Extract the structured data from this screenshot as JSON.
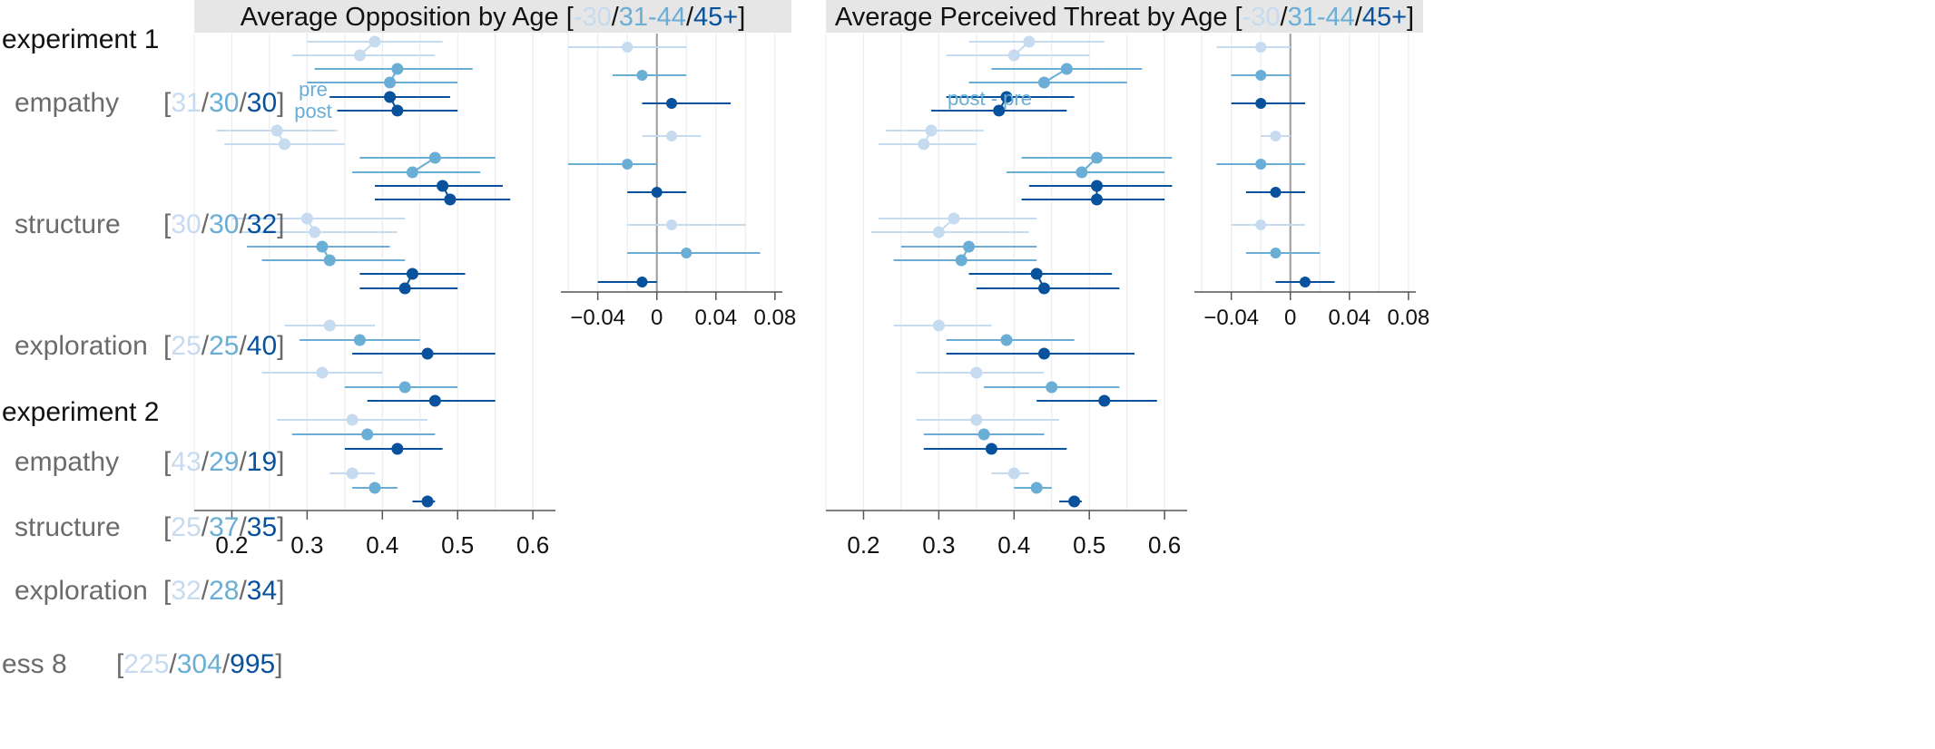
{
  "colors": {
    "young": "#c6dbef",
    "mid": "#6aaed6",
    "old": "#08519c",
    "grid": "#e8ecf0",
    "header_bg": "#e6e6e6",
    "axis": "#555555",
    "zero_line": "#9a9a9a",
    "label_gray": "#6b6b6b"
  },
  "header": {
    "left": {
      "title": "Average Opposition by Age [",
      "age_young": "-30",
      "sep1": "/",
      "age_mid": "31-44",
      "sep2": "/",
      "age_old": "45+",
      "close": "]"
    },
    "right": {
      "title": "Average Perceived Threat by Age [",
      "age_young": "-30",
      "sep1": "/",
      "age_mid": "31-44",
      "sep2": "/",
      "age_old": "45+",
      "close": "]"
    }
  },
  "labels": {
    "experiment1": "experiment 1",
    "experiment2": "experiment 2",
    "pre": "pre",
    "post": "post",
    "post_minus_pre": "post - pre",
    "open_bracket": "[",
    "close_bracket": "]",
    "slash": "/"
  },
  "chart_data": [
    {
      "type": "forest",
      "title": "Average Opposition by Age [-30/31-44/45+]",
      "x_ticks": [
        "0.2",
        "0.3",
        "0.4",
        "0.5",
        "0.6"
      ],
      "rows": [
        {
          "label": "empathy",
          "group": "experiment 1",
          "n": [
            "31",
            "30",
            "30"
          ],
          "pre": [
            {
              "m": 0.39,
              "lo": 0.3,
              "hi": 0.48
            },
            {
              "m": 0.42,
              "lo": 0.31,
              "hi": 0.52
            },
            {
              "m": 0.41,
              "lo": 0.33,
              "hi": 0.49
            }
          ],
          "post": [
            {
              "m": 0.37,
              "lo": 0.28,
              "hi": 0.47
            },
            {
              "m": 0.41,
              "lo": 0.3,
              "hi": 0.5
            },
            {
              "m": 0.42,
              "lo": 0.34,
              "hi": 0.5
            }
          ]
        },
        {
          "label": "structure",
          "group": "experiment 1",
          "n": [
            "30",
            "30",
            "32"
          ],
          "pre": [
            {
              "m": 0.26,
              "lo": 0.18,
              "hi": 0.34
            },
            {
              "m": 0.47,
              "lo": 0.37,
              "hi": 0.55
            },
            {
              "m": 0.48,
              "lo": 0.39,
              "hi": 0.56
            }
          ],
          "post": [
            {
              "m": 0.27,
              "lo": 0.19,
              "hi": 0.35
            },
            {
              "m": 0.44,
              "lo": 0.36,
              "hi": 0.53
            },
            {
              "m": 0.49,
              "lo": 0.39,
              "hi": 0.57
            }
          ]
        },
        {
          "label": "exploration",
          "group": "experiment 1",
          "n": [
            "25",
            "25",
            "40"
          ],
          "pre": [
            {
              "m": 0.3,
              "lo": 0.2,
              "hi": 0.43
            },
            {
              "m": 0.32,
              "lo": 0.22,
              "hi": 0.41
            },
            {
              "m": 0.44,
              "lo": 0.37,
              "hi": 0.51
            }
          ],
          "post": [
            {
              "m": 0.31,
              "lo": 0.21,
              "hi": 0.42
            },
            {
              "m": 0.33,
              "lo": 0.24,
              "hi": 0.43
            },
            {
              "m": 0.43,
              "lo": 0.37,
              "hi": 0.5
            }
          ]
        },
        {
          "label": "empathy",
          "group": "experiment 2",
          "n": [
            "43",
            "29",
            "19"
          ],
          "single": [
            {
              "m": 0.33,
              "lo": 0.27,
              "hi": 0.39
            },
            {
              "m": 0.37,
              "lo": 0.29,
              "hi": 0.45
            },
            {
              "m": 0.46,
              "lo": 0.36,
              "hi": 0.55
            }
          ]
        },
        {
          "label": "structure",
          "group": "experiment 2",
          "n": [
            "25",
            "37",
            "35"
          ],
          "single": [
            {
              "m": 0.32,
              "lo": 0.24,
              "hi": 0.4
            },
            {
              "m": 0.43,
              "lo": 0.35,
              "hi": 0.5
            },
            {
              "m": 0.47,
              "lo": 0.38,
              "hi": 0.55
            }
          ]
        },
        {
          "label": "exploration",
          "group": "experiment 2",
          "n": [
            "32",
            "28",
            "34"
          ],
          "single": [
            {
              "m": 0.36,
              "lo": 0.26,
              "hi": 0.46
            },
            {
              "m": 0.38,
              "lo": 0.28,
              "hi": 0.47
            },
            {
              "m": 0.42,
              "lo": 0.35,
              "hi": 0.48
            }
          ]
        },
        {
          "label": "ess 8",
          "group": "",
          "n": [
            "225",
            "304",
            "995"
          ],
          "single": [
            {
              "m": 0.36,
              "lo": 0.33,
              "hi": 0.39
            },
            {
              "m": 0.39,
              "lo": 0.36,
              "hi": 0.42
            },
            {
              "m": 0.46,
              "lo": 0.44,
              "hi": 0.47
            }
          ]
        }
      ],
      "diff": {
        "x_ticks": [
          "−0.04",
          "0",
          "0.04",
          "0.08"
        ],
        "rows": [
          [
            {
              "m": -0.02,
              "lo": -0.06,
              "hi": 0.02
            },
            {
              "m": -0.01,
              "lo": -0.03,
              "hi": 0.02
            },
            {
              "m": 0.01,
              "lo": -0.01,
              "hi": 0.05
            }
          ],
          [
            {
              "m": 0.01,
              "lo": -0.01,
              "hi": 0.03
            },
            {
              "m": -0.02,
              "lo": -0.06,
              "hi": 0.0
            },
            {
              "m": 0.0,
              "lo": -0.02,
              "hi": 0.02
            }
          ],
          [
            {
              "m": 0.01,
              "lo": -0.02,
              "hi": 0.06
            },
            {
              "m": 0.02,
              "lo": -0.02,
              "hi": 0.07
            },
            {
              "m": -0.01,
              "lo": -0.04,
              "hi": 0.0
            }
          ]
        ]
      }
    },
    {
      "type": "forest",
      "title": "Average Perceived Threat by Age [-30/31-44/45+]",
      "x_ticks": [
        "0.2",
        "0.3",
        "0.4",
        "0.5",
        "0.6"
      ],
      "rows": [
        {
          "label": "empathy",
          "group": "experiment 1",
          "pre": [
            {
              "m": 0.42,
              "lo": 0.34,
              "hi": 0.52
            },
            {
              "m": 0.47,
              "lo": 0.37,
              "hi": 0.57
            },
            {
              "m": 0.39,
              "lo": 0.31,
              "hi": 0.48
            }
          ],
          "post": [
            {
              "m": 0.4,
              "lo": 0.31,
              "hi": 0.5
            },
            {
              "m": 0.44,
              "lo": 0.34,
              "hi": 0.55
            },
            {
              "m": 0.38,
              "lo": 0.29,
              "hi": 0.47
            }
          ]
        },
        {
          "label": "structure",
          "group": "experiment 1",
          "pre": [
            {
              "m": 0.29,
              "lo": 0.23,
              "hi": 0.36
            },
            {
              "m": 0.51,
              "lo": 0.41,
              "hi": 0.61
            },
            {
              "m": 0.51,
              "lo": 0.42,
              "hi": 0.61
            }
          ],
          "post": [
            {
              "m": 0.28,
              "lo": 0.22,
              "hi": 0.35
            },
            {
              "m": 0.49,
              "lo": 0.39,
              "hi": 0.6
            },
            {
              "m": 0.51,
              "lo": 0.41,
              "hi": 0.6
            }
          ]
        },
        {
          "label": "exploration",
          "group": "experiment 1",
          "pre": [
            {
              "m": 0.32,
              "lo": 0.22,
              "hi": 0.43
            },
            {
              "m": 0.34,
              "lo": 0.25,
              "hi": 0.43
            },
            {
              "m": 0.43,
              "lo": 0.34,
              "hi": 0.53
            }
          ],
          "post": [
            {
              "m": 0.3,
              "lo": 0.21,
              "hi": 0.42
            },
            {
              "m": 0.33,
              "lo": 0.24,
              "hi": 0.43
            },
            {
              "m": 0.44,
              "lo": 0.35,
              "hi": 0.54
            }
          ]
        },
        {
          "label": "empathy",
          "group": "experiment 2",
          "single": [
            {
              "m": 0.3,
              "lo": 0.24,
              "hi": 0.37
            },
            {
              "m": 0.39,
              "lo": 0.31,
              "hi": 0.48
            },
            {
              "m": 0.44,
              "lo": 0.31,
              "hi": 0.56
            }
          ]
        },
        {
          "label": "structure",
          "group": "experiment 2",
          "single": [
            {
              "m": 0.35,
              "lo": 0.27,
              "hi": 0.44
            },
            {
              "m": 0.45,
              "lo": 0.36,
              "hi": 0.54
            },
            {
              "m": 0.52,
              "lo": 0.43,
              "hi": 0.59
            }
          ]
        },
        {
          "label": "exploration",
          "group": "experiment 2",
          "single": [
            {
              "m": 0.35,
              "lo": 0.27,
              "hi": 0.46
            },
            {
              "m": 0.36,
              "lo": 0.28,
              "hi": 0.44
            },
            {
              "m": 0.37,
              "lo": 0.28,
              "hi": 0.47
            }
          ]
        },
        {
          "label": "ess 8",
          "group": "",
          "single": [
            {
              "m": 0.4,
              "lo": 0.37,
              "hi": 0.42
            },
            {
              "m": 0.43,
              "lo": 0.4,
              "hi": 0.45
            },
            {
              "m": 0.48,
              "lo": 0.46,
              "hi": 0.49
            }
          ]
        }
      ],
      "diff": {
        "x_ticks": [
          "−0.04",
          "0",
          "0.04",
          "0.08"
        ],
        "rows": [
          [
            {
              "m": -0.02,
              "lo": -0.05,
              "hi": 0.0
            },
            {
              "m": -0.02,
              "lo": -0.04,
              "hi": 0.0
            },
            {
              "m": -0.02,
              "lo": -0.04,
              "hi": 0.01
            }
          ],
          [
            {
              "m": -0.01,
              "lo": -0.02,
              "hi": 0.0
            },
            {
              "m": -0.02,
              "lo": -0.05,
              "hi": 0.01
            },
            {
              "m": -0.01,
              "lo": -0.03,
              "hi": 0.01
            }
          ],
          [
            {
              "m": -0.02,
              "lo": -0.04,
              "hi": 0.01
            },
            {
              "m": -0.01,
              "lo": -0.03,
              "hi": 0.02
            },
            {
              "m": 0.01,
              "lo": -0.01,
              "hi": 0.03
            }
          ]
        ]
      }
    }
  ]
}
